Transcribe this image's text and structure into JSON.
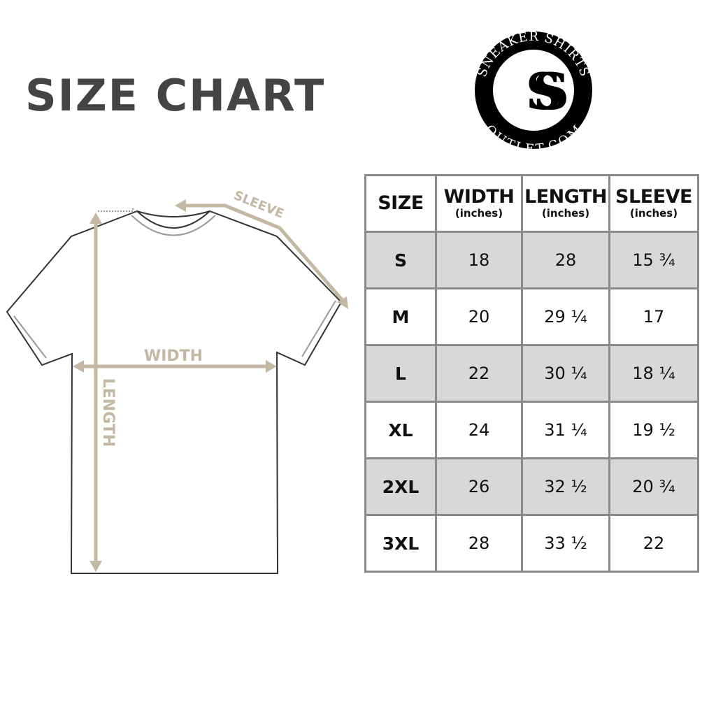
{
  "title": "SIZE CHART",
  "logo": {
    "top_text": "SNEAKER SHIRTS",
    "bottom_text": "OUTLET.COM",
    "monogram": "SS"
  },
  "diagram": {
    "sleeve_label": "SLEEVE",
    "width_label": "WIDTH",
    "length_label": "LENGTH",
    "accent_color": "#c4b7a4"
  },
  "table": {
    "headers": [
      {
        "label": "SIZE",
        "unit": ""
      },
      {
        "label": "WIDTH",
        "unit": "(inches)"
      },
      {
        "label": "LENGTH",
        "unit": "(inches)"
      },
      {
        "label": "SLEEVE",
        "unit": "(inches)"
      }
    ],
    "rows": [
      [
        "S",
        "18",
        "28",
        "15 ¾"
      ],
      [
        "M",
        "20",
        "29 ¼",
        "17"
      ],
      [
        "L",
        "22",
        "30 ¼",
        "18 ¼"
      ],
      [
        "XL",
        "24",
        "31 ¼",
        "19 ½"
      ],
      [
        "2XL",
        "26",
        "32 ½",
        "20 ¾"
      ],
      [
        "3XL",
        "28",
        "33 ½",
        "22"
      ]
    ]
  }
}
